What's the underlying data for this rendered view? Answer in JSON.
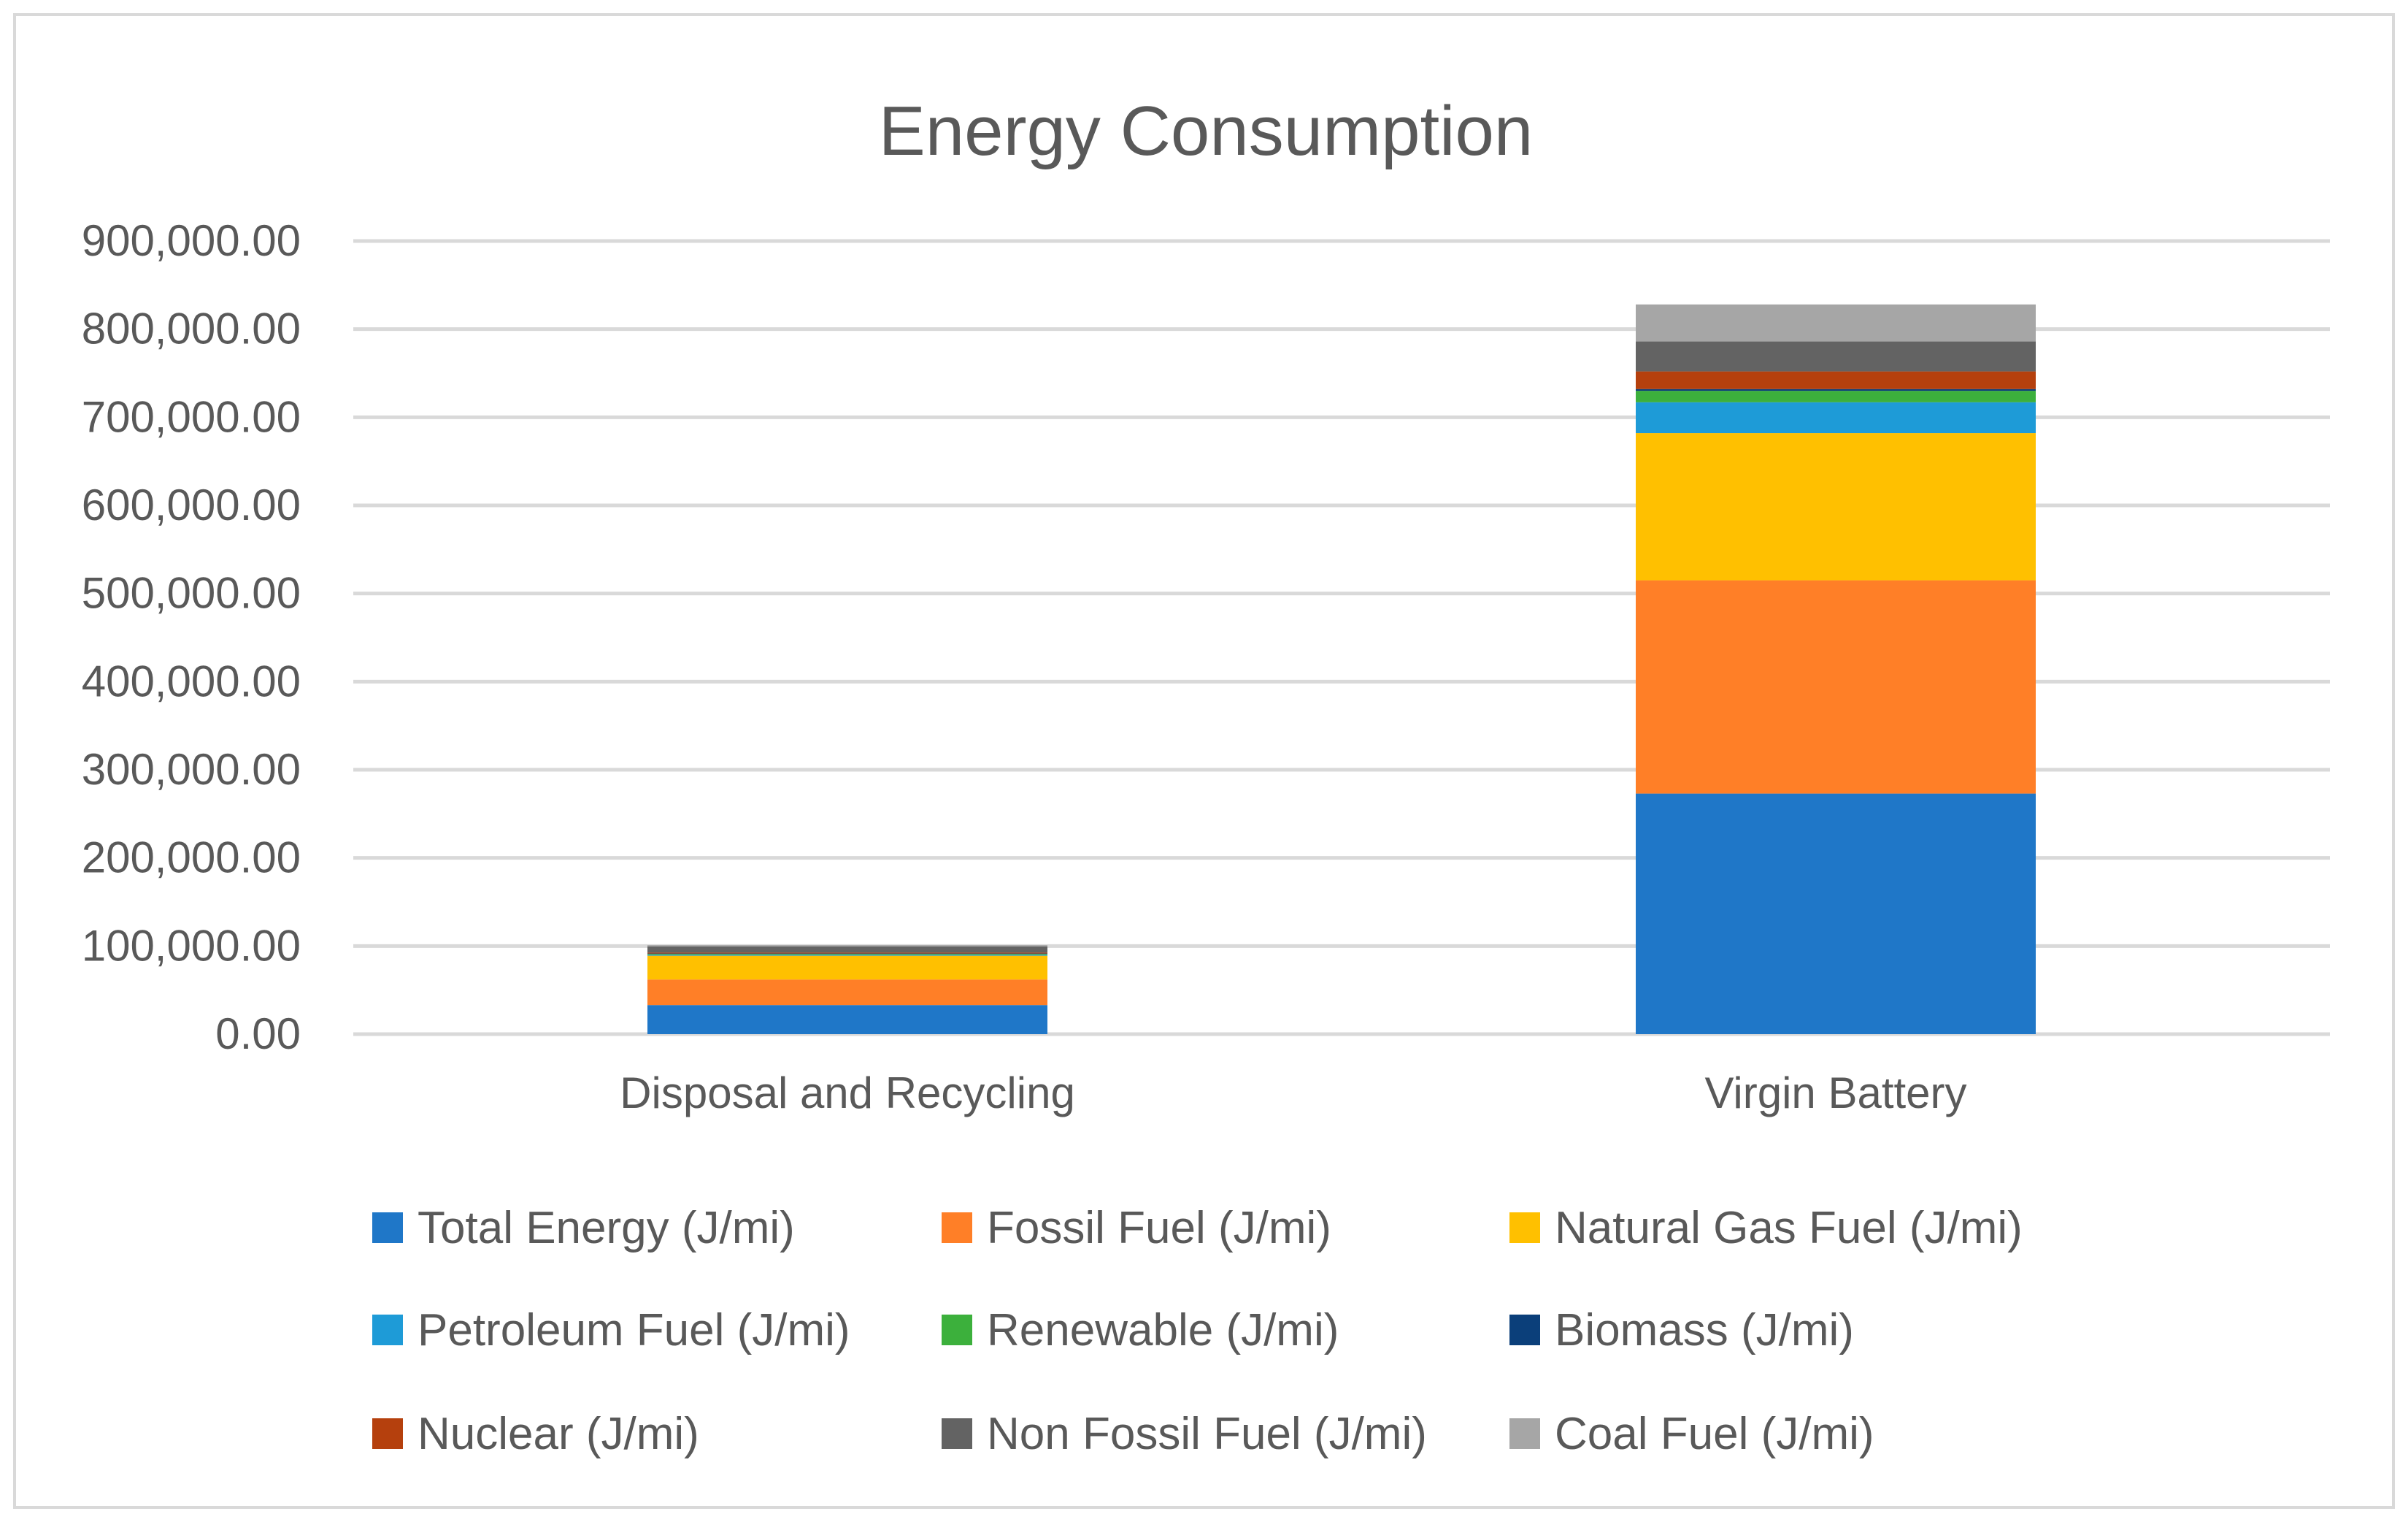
{
  "chart_data": {
    "type": "bar",
    "stacked": true,
    "title": "Energy Consumption",
    "xlabel": "",
    "ylabel": "",
    "ylim": [
      0,
      900000
    ],
    "yticks": [
      0,
      100000,
      200000,
      300000,
      400000,
      500000,
      600000,
      700000,
      800000,
      900000
    ],
    "ytick_labels": [
      "0.00",
      "100,000.00",
      "200,000.00",
      "300,000.00",
      "400,000.00",
      "500,000.00",
      "600,000.00",
      "700,000.00",
      "800,000.00",
      "900,000.00"
    ],
    "grid": true,
    "legend_position": "bottom",
    "categories": [
      "Disposal and Recycling",
      "Virgin Battery"
    ],
    "series": [
      {
        "name": "Total Energy (J/mi)",
        "color": "#1f77c8",
        "values": [
          33000,
          273000
        ]
      },
      {
        "name": "Fossil Fuel (J/mi)",
        "color": "#ff7f27",
        "values": [
          29000,
          242000
        ]
      },
      {
        "name": "Natural Gas Fuel (J/mi)",
        "color": "#ffc000",
        "values": [
          27000,
          167000
        ]
      },
      {
        "name": "Petroleum Fuel (J/mi)",
        "color": "#1e9bd7",
        "values": [
          1000,
          35000
        ]
      },
      {
        "name": "Renewable (J/mi)",
        "color": "#3cb03c",
        "values": [
          1000,
          13000
        ]
      },
      {
        "name": "Biomass (J/mi)",
        "color": "#0b3f7a",
        "values": [
          500,
          2000
        ]
      },
      {
        "name": "Nuclear (J/mi)",
        "color": "#b5400d",
        "values": [
          1000,
          20000
        ]
      },
      {
        "name": "Non Fossil Fuel (J/mi)",
        "color": "#636363",
        "values": [
          7000,
          34000
        ]
      },
      {
        "name": "Coal Fuel (J/mi)",
        "color": "#a6a6a6",
        "values": [
          1500,
          42000
        ]
      }
    ]
  }
}
